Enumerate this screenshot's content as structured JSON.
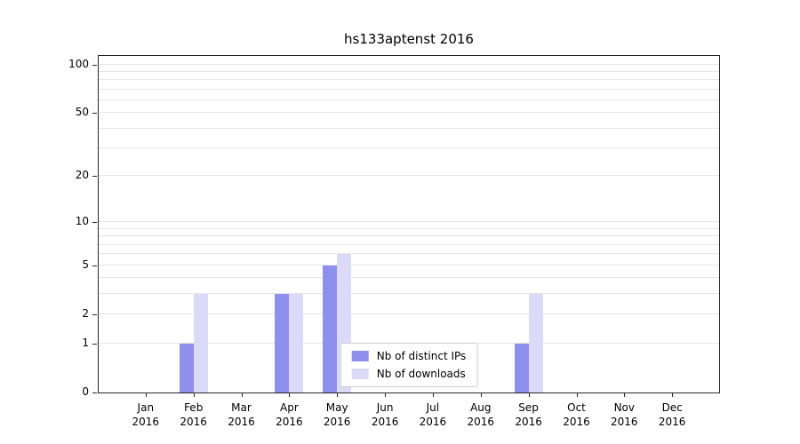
{
  "chart_data": {
    "type": "bar",
    "title": "hs133aptenst 2016",
    "xlabel": "",
    "ylabel": "",
    "categories": [
      "Jan",
      "Feb",
      "Mar",
      "Apr",
      "May",
      "Jun",
      "Jul",
      "Aug",
      "Sep",
      "Oct",
      "Nov",
      "Dec"
    ],
    "year": "2016",
    "series": [
      {
        "name": "Nb of distinct IPs",
        "color": "#8f8fee",
        "values": [
          0,
          1,
          0,
          3,
          5,
          0,
          0,
          0,
          1,
          0,
          0,
          0
        ]
      },
      {
        "name": "Nb of downloads",
        "color": "#dbdbf8",
        "values": [
          0,
          3,
          0,
          3,
          6,
          0,
          0,
          0,
          3,
          0,
          0,
          0
        ]
      }
    ],
    "yticks": [
      0,
      1,
      2,
      5,
      10,
      20,
      50,
      100
    ],
    "ylim": [
      0,
      110
    ],
    "yscale": "log1p",
    "grid": true,
    "legend_position": "lower center"
  }
}
